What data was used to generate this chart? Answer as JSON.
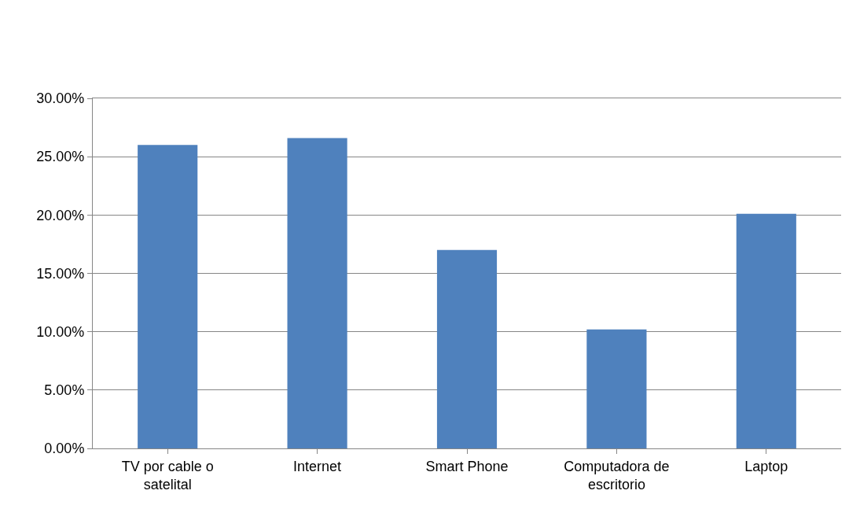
{
  "chart_data": {
    "type": "bar",
    "categories": [
      "TV por cable o satelital",
      "Internet",
      "Smart Phone",
      "Computadora de escritorio",
      "Laptop"
    ],
    "values": [
      26.0,
      26.6,
      17.0,
      10.2,
      20.1
    ],
    "color": "#4f81bd",
    "ylim": [
      0,
      30
    ],
    "yticks": [
      {
        "value": 0,
        "label": "0.00%"
      },
      {
        "value": 5,
        "label": "5.00%"
      },
      {
        "value": 10,
        "label": "10.00%"
      },
      {
        "value": 15,
        "label": "15.00%"
      },
      {
        "value": 20,
        "label": "20.00%"
      },
      {
        "value": 25,
        "label": "25.00%"
      },
      {
        "value": 30,
        "label": "30.00%"
      }
    ],
    "grid": "y"
  }
}
